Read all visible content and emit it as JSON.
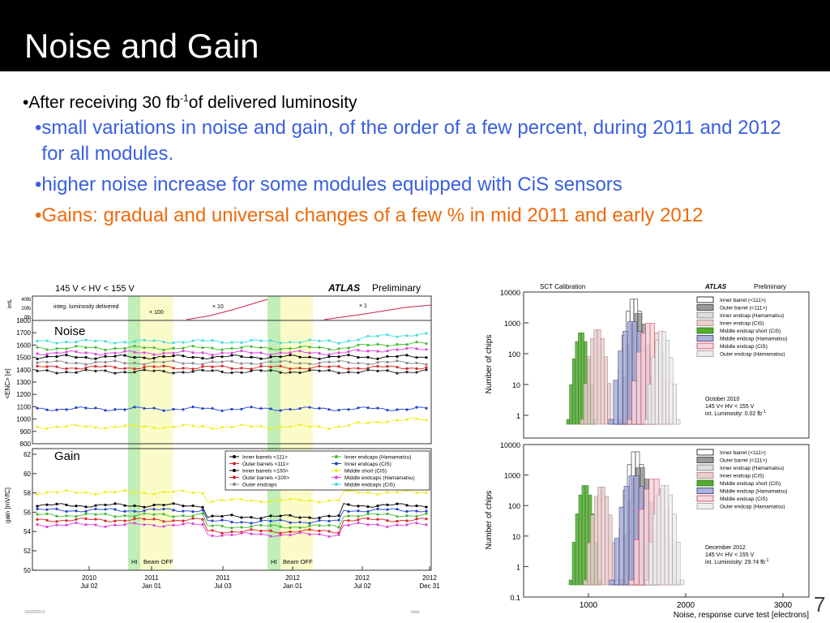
{
  "slide": {
    "title": "Noise and Gain",
    "bullet1": {
      "prefix": "After receiving 30 fb",
      "sup": "-1",
      "suffix": "of delivered luminosity"
    },
    "sub_bullets": [
      "small variations in noise and gain, of the order of a few percent, during 2011 and 2012 for all modules.",
      "higher noise increase for some modules equipped with CiS sensors",
      "Gains:  gradual and universal changes of a few % in mid 2011 and early 2012"
    ],
    "bullet_char": "•",
    "slide_number": "7",
    "footer_date": "10/20/2014",
    "footer_center": "hello"
  },
  "colors": {
    "blue_text": "#3a5fe0",
    "orange_text": "#ee6a0a",
    "title_bg": "#000000"
  },
  "left_chart": {
    "header": "145 V < HV < 155 V",
    "atlas": "ATLAS",
    "preliminary": "Preliminary",
    "lumi_label": "integ. luminosity delivered",
    "scale_labels": [
      "× 100",
      "× 10",
      "× 1"
    ],
    "intl_axis_label": "intL",
    "intl_ticks": [
      "40fb",
      "20fb",
      "0fb"
    ],
    "noise_panel_label": "Noise",
    "noise_axis_label": "<ENC> [e]",
    "noise_ticks": [
      "1800",
      "1700",
      "1600",
      "1500",
      "1400",
      "1300",
      "1200",
      "1100",
      "1000",
      "900",
      "800"
    ],
    "gain_panel_label": "Gain",
    "gain_axis_label": "gain [mV/fC]",
    "gain_ticks": [
      "62",
      "60",
      "58",
      "56",
      "54",
      "52",
      "50"
    ],
    "legend": [
      {
        "label": "Inner barrels <111>",
        "color": "#000000"
      },
      {
        "label": "Inner endcaps (Hamamatsu)",
        "color": "#44bb33"
      },
      {
        "label": "Outer barrels <111>",
        "color": "#dd2222"
      },
      {
        "label": "Inner endcaps (CiS)",
        "color": "#2244cc"
      },
      {
        "label": "Inner barrels <100>",
        "color": "#000000"
      },
      {
        "label": "Middle short (CiS)",
        "color": "#eeee22"
      },
      {
        "label": "Outer barrels <100>",
        "color": "#dd2222"
      },
      {
        "label": "Middle endcaps (Hamamatsu)",
        "color": "#dd44dd"
      },
      {
        "label": "Outer endcaps",
        "color": "#888888"
      },
      {
        "label": "Middle endcaps (CiS)",
        "color": "#44dddd"
      }
    ],
    "band_labels": [
      "HI",
      "Beam OFF",
      "HI",
      "Beam OFF"
    ],
    "x_ticks": [
      {
        "year": "2010",
        "date": "Jul 02"
      },
      {
        "year": "2011",
        "date": "Jan 01"
      },
      {
        "year": "2011",
        "date": "Jul 03"
      },
      {
        "year": "2012",
        "date": "Jan 01"
      },
      {
        "year": "2012",
        "date": "Jul 02"
      },
      {
        "year": "2012",
        "date": "Dec 31"
      }
    ]
  },
  "right_chart": {
    "title": "SCT Calibration",
    "atlas": "ATLAS",
    "preliminary": "Preliminary",
    "y_axis_label": "Number of chips",
    "y_ticks": [
      "10000",
      "1000",
      "100",
      "10",
      "1"
    ],
    "y_ticks_bottom": [
      "10000",
      "1000",
      "100",
      "10",
      "1",
      "0.1"
    ],
    "x_ticks": [
      "1000",
      "2000",
      "3000"
    ],
    "x_axis_label": "Noise, response curve test [electrons]",
    "legend": [
      {
        "label": "Inner barrel (<111>)",
        "fill": "#ffffff",
        "stroke": "#000000"
      },
      {
        "label": "Outer barrel (<111>)",
        "fill": "#999999",
        "stroke": "#333333"
      },
      {
        "label": "Inner endcap (Hamamatsu)",
        "fill": "#dddddd",
        "stroke": "#777777"
      },
      {
        "label": "Inner endcap (CiS)",
        "fill": "#e8d0d0",
        "stroke": "#aa7777"
      },
      {
        "label": "Middle endcap short (CiS)",
        "fill": "#55aa33",
        "stroke": "#227711"
      },
      {
        "label": "Middle endcap (Hamamatsu)",
        "fill": "#aab0d8",
        "stroke": "#333377"
      },
      {
        "label": "Middle endcap (CiS)",
        "fill": "#f0d8e0",
        "stroke": "#dd3344"
      },
      {
        "label": "Outer endcap (Hamamatsu)",
        "fill": "#eeeeee",
        "stroke": "#999999"
      }
    ],
    "info_top": {
      "line1": "October 2010",
      "line2": "145 V< HV < 155 V",
      "line3": "int. Luminosity:  0.02 fb",
      "sup": "-1"
    },
    "info_bottom": {
      "line1": "December 2012",
      "line2": "145 V< HV < 155 V",
      "line3": "int. Luminosity: 29.74 fb",
      "sup": "-1"
    }
  }
}
